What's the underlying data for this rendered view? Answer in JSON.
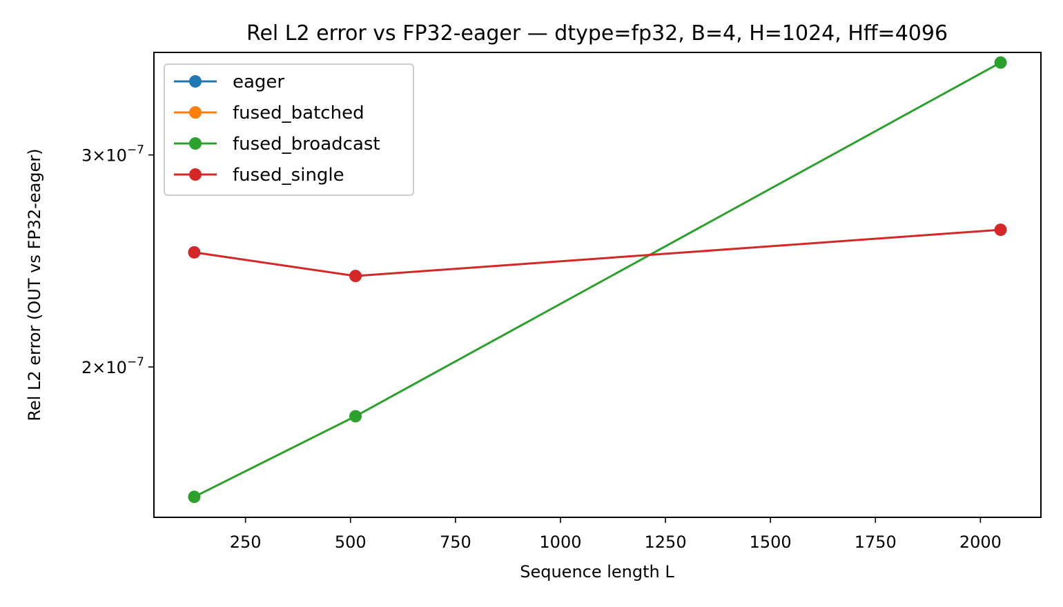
{
  "chart_data": {
    "type": "line",
    "title": "Rel L2 error vs FP32-eager — dtype=fp32, B=4, H=1024, Hff=4096",
    "xlabel": "Sequence length L",
    "ylabel": "Rel L2 error (OUT vs FP32-eager)",
    "yscale": "log",
    "grid": false,
    "legend_position": "top-left",
    "xlim": [
      32,
      2144
    ],
    "ylim": [
      1.5e-07,
      3.65e-07
    ],
    "x": [
      128,
      512,
      2048
    ],
    "xticks": [
      250,
      500,
      750,
      1000,
      1250,
      1500,
      1750,
      2000
    ],
    "xtick_labels": [
      "250",
      "500",
      "750",
      "1000",
      "1250",
      "1500",
      "1750",
      "2000"
    ],
    "yticks": [
      {
        "value": 3e-07,
        "mantissa": "3",
        "base": "10",
        "exponent": "−7"
      },
      {
        "value": 2e-07,
        "mantissa": "2",
        "base": "10",
        "exponent": "−7"
      }
    ],
    "series": [
      {
        "name": "eager",
        "color": "#1f77b4",
        "values": [
          null,
          null,
          null
        ]
      },
      {
        "name": "fused_batched",
        "color": "#ff7f0e",
        "values": [
          null,
          null,
          null
        ]
      },
      {
        "name": "fused_broadcast",
        "color": "#2ca02c",
        "values": [
          1.56e-07,
          1.82e-07,
          3.58e-07
        ]
      },
      {
        "name": "fused_single",
        "color": "#d62728",
        "values": [
          2.49e-07,
          2.38e-07,
          2.6e-07
        ]
      }
    ]
  }
}
